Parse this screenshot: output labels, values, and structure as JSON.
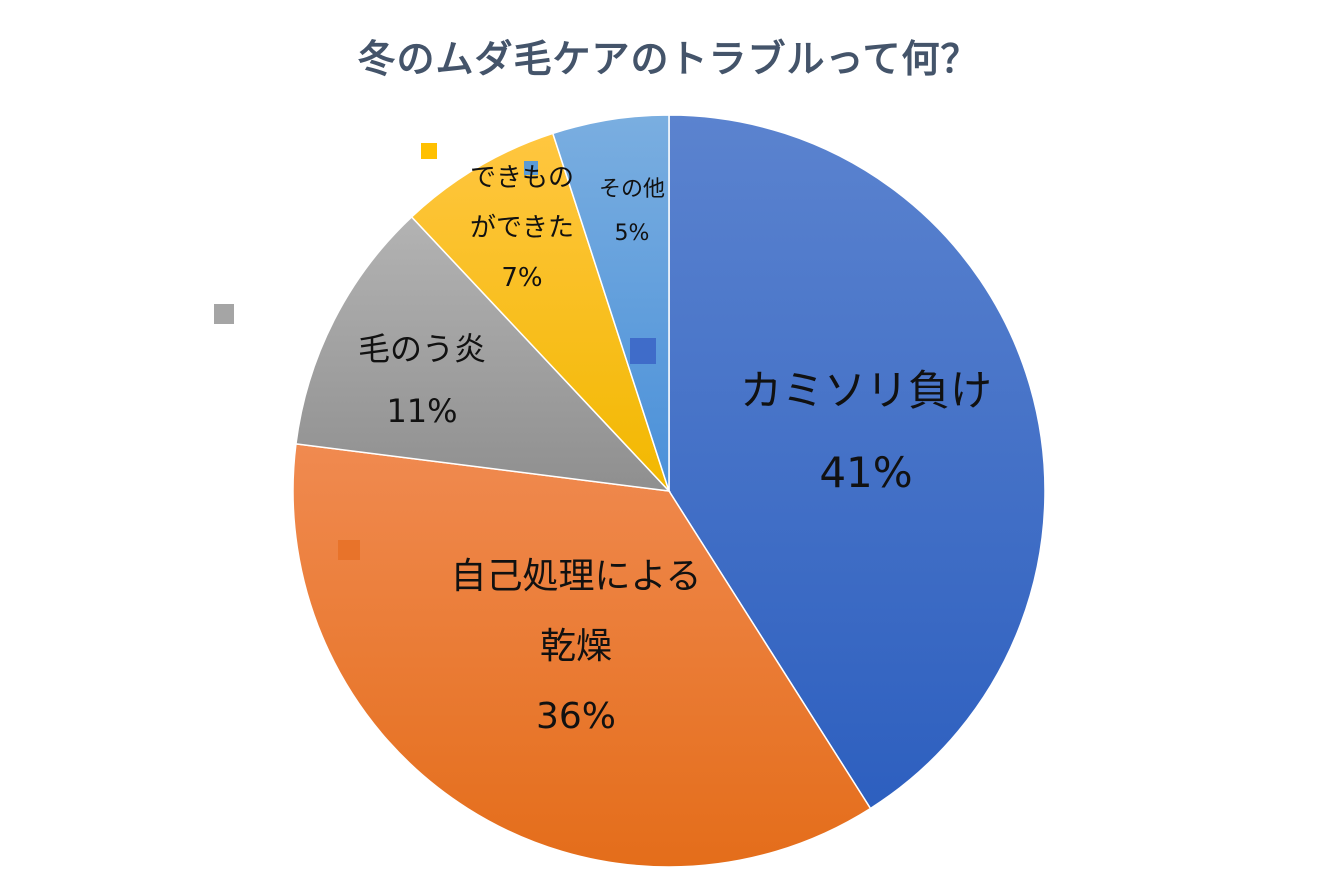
{
  "chart_data": {
    "type": "pie",
    "title": "冬のムダ毛ケアのトラブルって何？",
    "slices": [
      {
        "label_lines": [
          "カミソリ負け"
        ],
        "value": 41,
        "value_label": "41%",
        "color_top": "#5b83cf",
        "color_bottom": "#2d5fbf"
      },
      {
        "label_lines": [
          "自己処理による",
          "乾燥"
        ],
        "value": 36,
        "value_label": "36%",
        "color_top": "#f08a50",
        "color_bottom": "#e46d1a"
      },
      {
        "label_lines": [
          "毛のう炎"
        ],
        "value": 11,
        "value_label": "11%",
        "color_top": "#b3b3b3",
        "color_bottom": "#8f8f8f"
      },
      {
        "label_lines": [
          "できもの",
          "ができた"
        ],
        "value": 7,
        "value_label": "7%",
        "color_top": "#ffc640",
        "color_bottom": "#f2b800"
      },
      {
        "label_lines": [
          "その他"
        ],
        "value": 5,
        "value_label": "5%",
        "color_top": "#7aaee0",
        "color_bottom": "#4a90d9"
      }
    ],
    "legend_markers": [
      "#3f6cc9",
      "#e8732a",
      "#a5a5a5",
      "#ffc000",
      "#5b9bd5"
    ]
  }
}
